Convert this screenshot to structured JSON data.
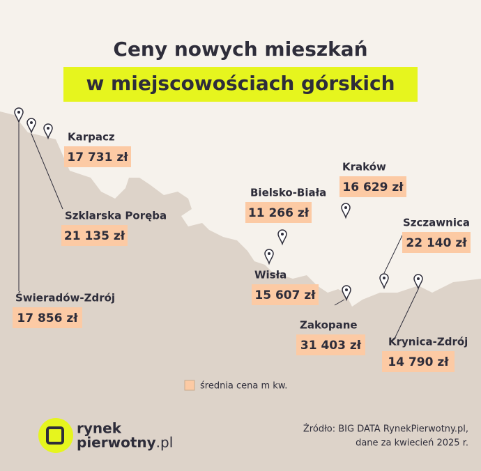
{
  "header": {
    "title": "Ceny nowych mieszkań",
    "subtitle": "w miejscowościach górskich"
  },
  "locations": [
    {
      "name": "Karpacz",
      "price": "17 731 zł"
    },
    {
      "name": "Szklarska Poręba",
      "price": "21 135 zł"
    },
    {
      "name": "Świeradów-Zdrój",
      "price": "17 856 zł"
    },
    {
      "name": "Kraków",
      "price": "16 629 zł"
    },
    {
      "name": "Bielsko-Biała",
      "price": "11 266 zł"
    },
    {
      "name": "Szczawnica",
      "price": "22 140 zł"
    },
    {
      "name": "Wisła",
      "price": "15 607 zł"
    },
    {
      "name": "Zakopane",
      "price": "31 403 zł"
    },
    {
      "name": "Krynica-Zdrój",
      "price": "14 790 zł"
    }
  ],
  "legend": "średnia cena m kw.",
  "logo": {
    "line1": "rynek",
    "line2": "pierwotny",
    "suffix": ".pl"
  },
  "source": [
    "Źródło: BIG DATA RynekPierwotny.pl,",
    "dane za kwiecień 2025 r."
  ]
}
